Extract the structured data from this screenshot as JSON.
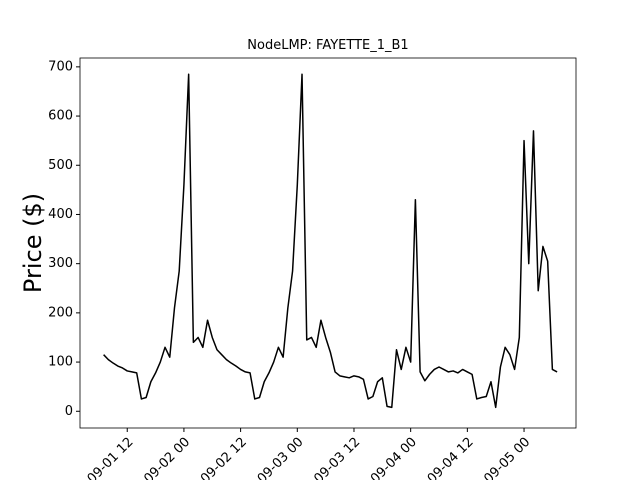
{
  "chart_data": {
    "type": "line",
    "title": "NodeLMP: FAYETTE_1_B1",
    "y_label": "Price ($)",
    "color": "#000000",
    "x": [
      "09-01 07",
      "09-01 08",
      "09-01 09",
      "09-01 10",
      "09-01 11",
      "09-01 12",
      "09-01 13",
      "09-01 14",
      "09-01 15",
      "09-01 16",
      "09-01 17",
      "09-01 18",
      "09-01 19",
      "09-01 20",
      "09-01 21",
      "09-01 22",
      "09-01 23",
      "09-02 00",
      "09-02 01",
      "09-02 02",
      "09-02 03",
      "09-02 04",
      "09-02 05",
      "09-02 06",
      "09-02 07",
      "09-02 08",
      "09-02 09",
      "09-02 10",
      "09-02 11",
      "09-02 12",
      "09-02 13",
      "09-02 14",
      "09-02 15",
      "09-02 16",
      "09-02 17",
      "09-02 18",
      "09-02 19",
      "09-02 20",
      "09-02 21",
      "09-02 22",
      "09-02 23",
      "09-03 00",
      "09-03 01",
      "09-03 02",
      "09-03 03",
      "09-03 04",
      "09-03 05",
      "09-03 06",
      "09-03 07",
      "09-03 08",
      "09-03 09",
      "09-03 10",
      "09-03 11",
      "09-03 12",
      "09-03 13",
      "09-03 14",
      "09-03 15",
      "09-03 16",
      "09-03 17",
      "09-03 18",
      "09-03 19",
      "09-03 20",
      "09-03 21",
      "09-03 22",
      "09-03 23",
      "09-04 00",
      "09-04 01",
      "09-04 02",
      "09-04 03",
      "09-04 04",
      "09-04 05",
      "09-04 06",
      "09-04 07",
      "09-04 08",
      "09-04 09",
      "09-04 10",
      "09-04 11",
      "09-04 12",
      "09-04 13",
      "09-04 14",
      "09-04 15",
      "09-04 16",
      "09-04 17",
      "09-04 18",
      "09-04 19",
      "09-04 20",
      "09-04 21",
      "09-04 22",
      "09-04 23",
      "09-05 00",
      "09-05 01",
      "09-05 02",
      "09-05 03",
      "09-05 04",
      "09-05 05",
      "09-05 06",
      "09-05 07"
    ],
    "values": [
      115,
      105,
      98,
      92,
      88,
      82,
      80,
      78,
      25,
      28,
      60,
      78,
      100,
      130,
      110,
      210,
      285,
      460,
      685,
      140,
      150,
      130,
      185,
      150,
      125,
      115,
      105,
      98,
      92,
      85,
      80,
      78,
      25,
      28,
      60,
      78,
      100,
      130,
      110,
      210,
      285,
      460,
      685,
      145,
      150,
      130,
      185,
      150,
      120,
      80,
      72,
      70,
      68,
      72,
      70,
      65,
      25,
      30,
      60,
      68,
      10,
      8,
      125,
      85,
      130,
      100,
      430,
      80,
      62,
      75,
      85,
      90,
      85,
      80,
      82,
      78,
      85,
      80,
      75,
      25,
      28,
      30,
      60,
      8,
      90,
      130,
      115,
      85,
      150,
      550,
      300,
      570,
      245,
      335,
      305,
      85,
      80
    ],
    "xlim": [
      "09-01 02",
      "09-05 11"
    ],
    "xticks": [
      "09-01 12",
      "09-02 00",
      "09-02 12",
      "09-03 00",
      "09-03 12",
      "09-04 00",
      "09-04 12",
      "09-05 00"
    ],
    "ylim": [
      -34,
      718
    ],
    "yticks": [
      0,
      100,
      200,
      300,
      400,
      500,
      600,
      700
    ]
  }
}
